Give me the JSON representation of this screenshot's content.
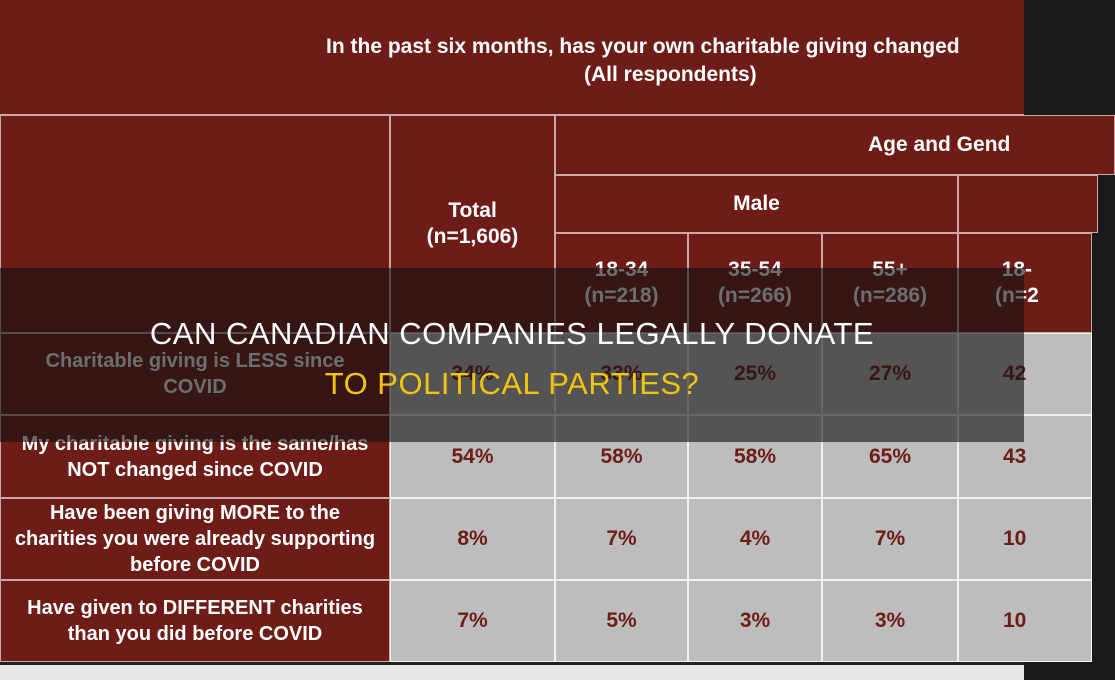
{
  "title": {
    "line1": "In the past six months, has your own charitable giving changed",
    "line2": "(All respondents)"
  },
  "header": {
    "total": "Total",
    "total_n": "(n=1,606)",
    "group": "Age and Gend",
    "subgroup": "Male",
    "columns": [
      {
        "label": "18-34",
        "n": "(n=218)"
      },
      {
        "label": "35-54",
        "n": "(n=266)"
      },
      {
        "label": "55+",
        "n": "(n=286)"
      },
      {
        "label": "18-",
        "n": "(n=2"
      }
    ]
  },
  "rows": [
    {
      "label": "Charitable giving is LESS since COVID",
      "values": [
        "34%",
        "33%",
        "25%",
        "27%",
        "42"
      ]
    },
    {
      "label": "My charitable giving is the same/has NOT changed since COVID",
      "values": [
        "54%",
        "58%",
        "58%",
        "65%",
        "43"
      ]
    },
    {
      "label": "Have been giving MORE to the charities you were already supporting before COVID",
      "values": [
        "8%",
        "7%",
        "4%",
        "7%",
        "10"
      ]
    },
    {
      "label": "Have given to DIFFERENT charities than you did before COVID",
      "values": [
        "7%",
        "5%",
        "3%",
        "3%",
        "10"
      ]
    }
  ],
  "overlay": {
    "line1": "CAN CANADIAN COMPANIES LEGALLY DONATE",
    "line2": "TO POLITICAL PARTIES?"
  }
}
